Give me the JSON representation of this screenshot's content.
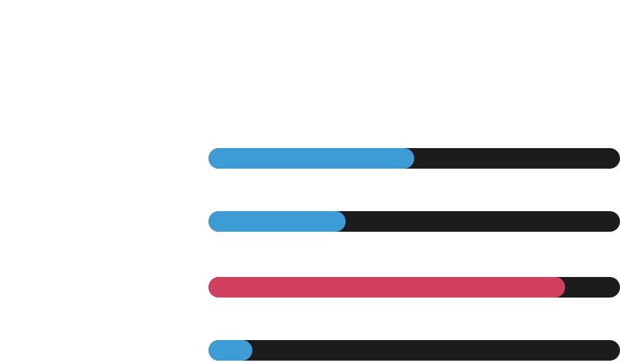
{
  "colors": {
    "track": "#1c1c1c",
    "accent_blue": "#3d9bd6",
    "accent_red": "#d33f5e"
  },
  "progress_bars": [
    {
      "name": "progress-bar-1",
      "progress": 0.5,
      "color": "#3d9bd6"
    },
    {
      "name": "progress-bar-2",
      "progress": 0.3333,
      "color": "#3d9bd6"
    },
    {
      "name": "progress-bar-3",
      "progress": 0.8667,
      "color": "#d33f5e"
    },
    {
      "name": "progress-bar-4",
      "progress": 0.1067,
      "color": "#3d9bd6"
    }
  ]
}
